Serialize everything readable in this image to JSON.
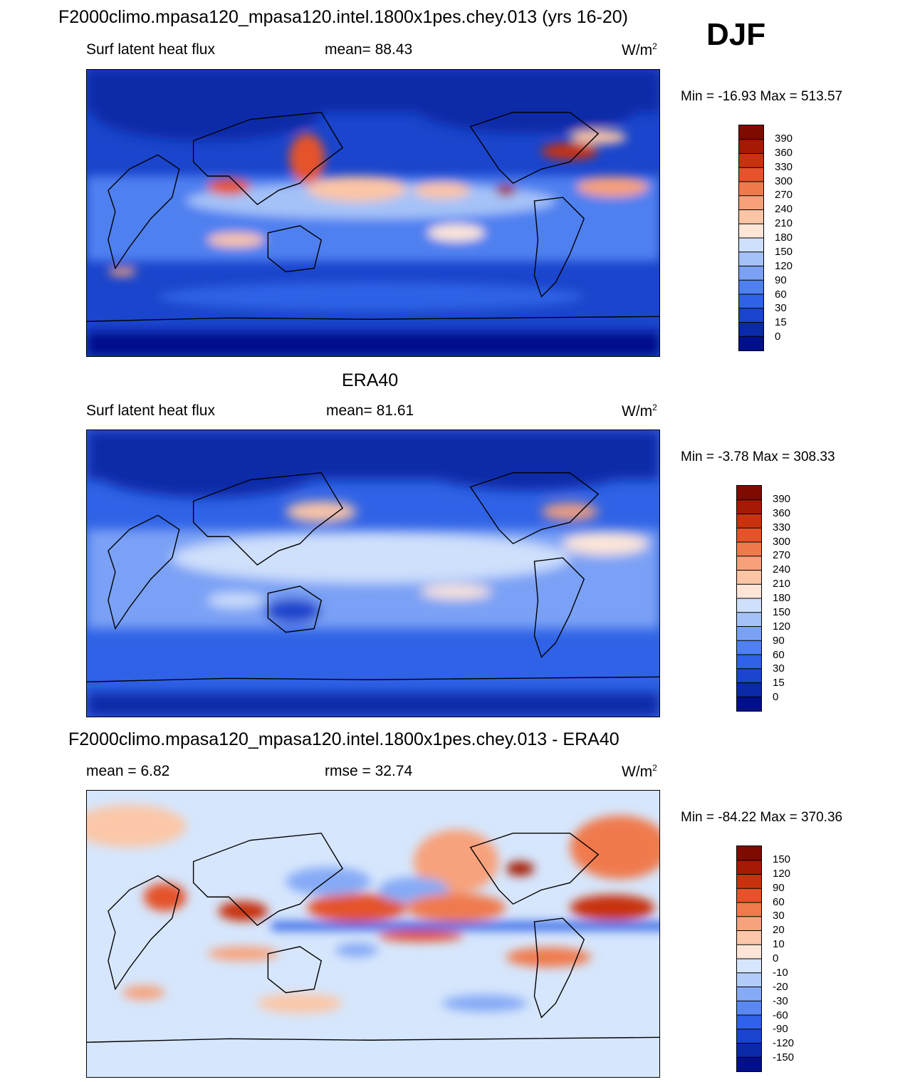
{
  "season": "DJF",
  "panels": [
    {
      "title": "F2000climo.mpasa120_mpasa120.intel.1800x1pes.chey.013 (yrs 16-20)",
      "left_label": "Surf latent heat flux",
      "stat_label": "mean=  88.43",
      "units": "W/m",
      "units_exp": "2",
      "minmax": "Min = -16.93 Max = 513.57",
      "palette": "sequential",
      "colorbar_labels": [
        "390",
        "360",
        "330",
        "300",
        "270",
        "240",
        "210",
        "180",
        "150",
        "120",
        "90",
        "60",
        "30",
        "15",
        "0"
      ]
    },
    {
      "title": "ERA40",
      "left_label": "Surf latent heat flux",
      "stat_label": "mean=  81.61",
      "units": "W/m",
      "units_exp": "2",
      "minmax": "Min =  -3.78 Max = 308.33",
      "palette": "sequential",
      "colorbar_labels": [
        "390",
        "360",
        "330",
        "300",
        "270",
        "240",
        "210",
        "180",
        "150",
        "120",
        "90",
        "60",
        "30",
        "15",
        "0"
      ]
    },
    {
      "title": "F2000climo.mpasa120_mpasa120.intel.1800x1pes.chey.013 - ERA40",
      "left_label": "mean =   6.82",
      "stat_label": "rmse =  32.74",
      "units": "W/m",
      "units_exp": "2",
      "minmax": "Min = -84.22 Max = 370.36",
      "palette": "diverging",
      "colorbar_labels": [
        "150",
        "120",
        "90",
        "60",
        "30",
        "20",
        "10",
        "0",
        "-10",
        "-20",
        "-30",
        "-60",
        "-90",
        "-120",
        "-150"
      ]
    }
  ],
  "colors": {
    "sequential": [
      "#000f8c",
      "#0a2aa8",
      "#1a45cc",
      "#2f62e6",
      "#4f80f0",
      "#7aa1f5",
      "#a5c2f8",
      "#cfe0fb",
      "#fde6d8",
      "#fbc5a6",
      "#f7a07a",
      "#f07a4d",
      "#e4532a",
      "#c8330f",
      "#a51a04",
      "#7f0a00"
    ],
    "diverging": [
      "#000f8c",
      "#0a2aa8",
      "#1a45cc",
      "#2f62e6",
      "#5a88f2",
      "#86aaf6",
      "#b1ccf9",
      "#d6e6fc",
      "#fde6d8",
      "#fbc7a8",
      "#f7a27c",
      "#f07a4d",
      "#e4532a",
      "#c8330f",
      "#a51a04",
      "#7f0a00"
    ]
  }
}
